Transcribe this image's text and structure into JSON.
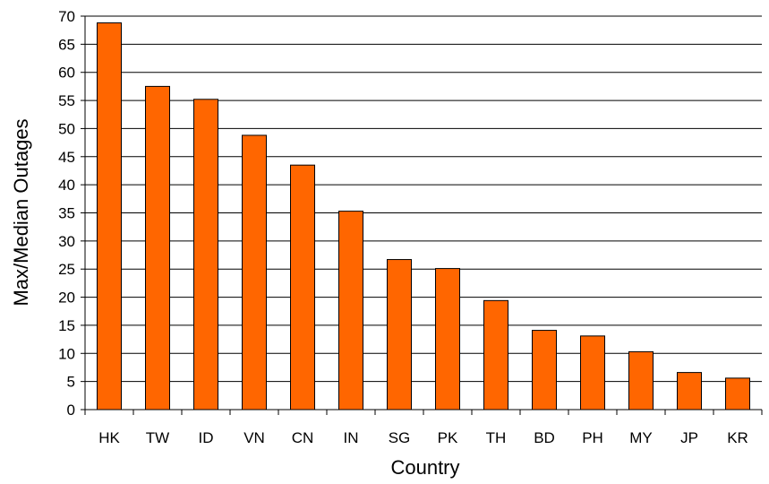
{
  "chart_data": {
    "type": "bar",
    "title": "",
    "xlabel": "Country",
    "ylabel": "Max/Median Outages",
    "categories": [
      "HK",
      "TW",
      "ID",
      "VN",
      "CN",
      "IN",
      "SG",
      "PK",
      "TH",
      "BD",
      "PH",
      "MY",
      "JP",
      "KR"
    ],
    "values": [
      68.8,
      57.5,
      55.2,
      48.8,
      43.5,
      35.3,
      26.7,
      25.1,
      19.4,
      14.1,
      13.1,
      10.3,
      6.6,
      5.6
    ],
    "ylim": [
      0,
      70
    ],
    "yticks": [
      0,
      5,
      10,
      15,
      20,
      25,
      30,
      35,
      40,
      45,
      50,
      55,
      60,
      65,
      70
    ],
    "grid": true,
    "legend": "none",
    "colors": {
      "bar": "#FF6600",
      "bar_border": "#000000",
      "grid": "#000000"
    }
  }
}
